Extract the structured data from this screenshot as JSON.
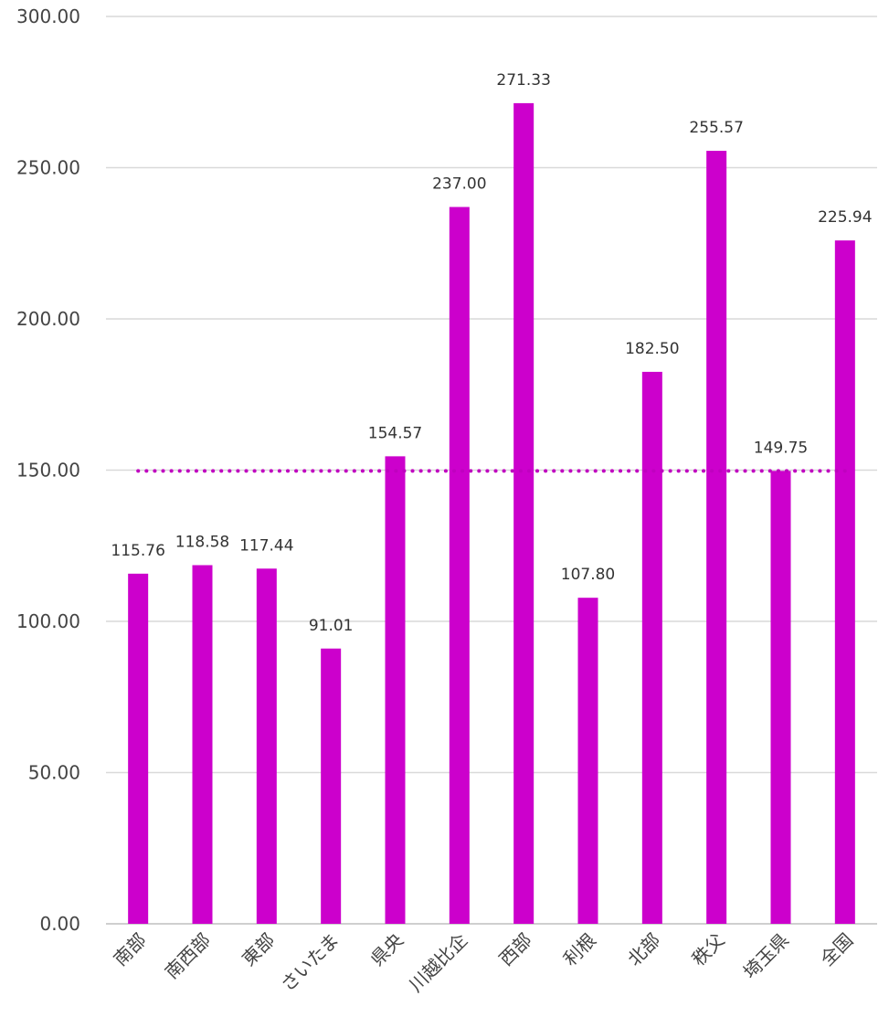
{
  "chart_data": {
    "type": "bar",
    "title": "",
    "xlabel": "",
    "ylabel": "",
    "categories": [
      "南部",
      "南西部",
      "東部",
      "さいたま",
      "県央",
      "川越比企",
      "西部",
      "利根",
      "北部",
      "秩父",
      "埼玉県",
      "全国"
    ],
    "values": [
      115.76,
      118.58,
      117.44,
      91.01,
      154.57,
      237.0,
      271.33,
      107.8,
      182.5,
      255.57,
      149.75,
      225.94
    ],
    "value_labels": [
      "115.76",
      "118.58",
      "117.44",
      "91.01",
      "154.57",
      "237.00",
      "271.33",
      "107.80",
      "182.50",
      "255.57",
      "149.75",
      "225.94"
    ],
    "ylim": [
      0,
      300
    ],
    "yticks": [
      0,
      50,
      100,
      150,
      200,
      250,
      300
    ],
    "ytick_labels": [
      "0.00",
      "50.00",
      "100.00",
      "150.00",
      "200.00",
      "250.00",
      "300.00"
    ],
    "reference_line": {
      "value": 149.75,
      "style": "dotted"
    },
    "grid": true,
    "legend": "none",
    "bar_color": "#cc00cc"
  }
}
